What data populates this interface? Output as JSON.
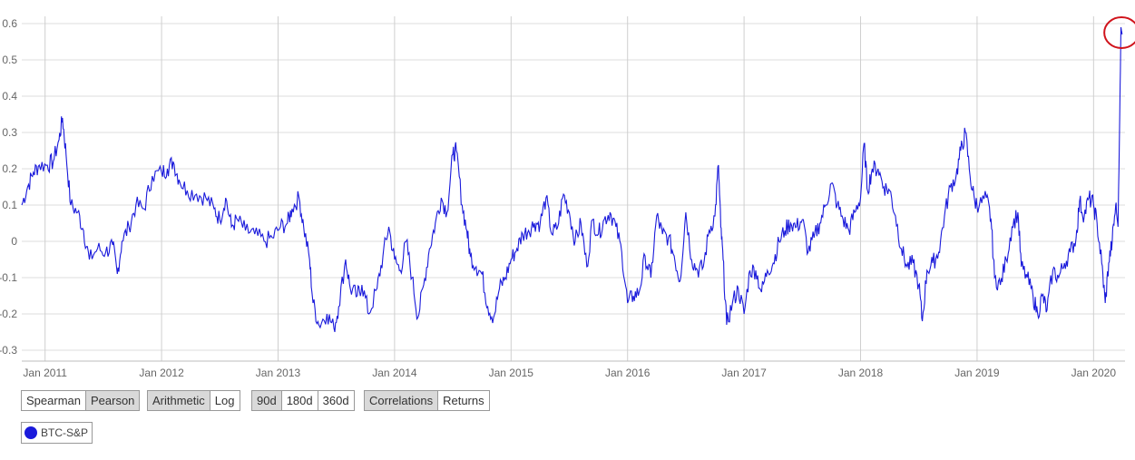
{
  "chart_data": {
    "type": "line",
    "x_ticks": [
      "Jan 2011",
      "Jan 2012",
      "Jan 2013",
      "Jan 2014",
      "Jan 2015",
      "Jan 2016",
      "Jan 2017",
      "Jan 2018",
      "Jan 2019",
      "Jan 2020"
    ],
    "y_ticks": [
      "0.6",
      "0.5",
      "0.4",
      "0.3",
      "0.2",
      "0.1",
      "0",
      "-0.1",
      "-0.2",
      "-0.3"
    ],
    "ylim": [
      -0.33,
      0.62
    ],
    "xlim": [
      2010.8,
      2020.27
    ],
    "grid": true,
    "series": [
      {
        "name": "BTC-S&P",
        "color": "#1a1adb",
        "points": [
          [
            2010.8,
            0.1
          ],
          [
            2010.85,
            0.15
          ],
          [
            2010.9,
            0.19
          ],
          [
            2010.95,
            0.21
          ],
          [
            2011.02,
            0.21
          ],
          [
            2011.07,
            0.22
          ],
          [
            2011.12,
            0.28
          ],
          [
            2011.15,
            0.34
          ],
          [
            2011.18,
            0.24
          ],
          [
            2011.22,
            0.1
          ],
          [
            2011.28,
            0.08
          ],
          [
            2011.33,
            0.03
          ],
          [
            2011.38,
            -0.05
          ],
          [
            2011.45,
            -0.02
          ],
          [
            2011.52,
            -0.03
          ],
          [
            2011.58,
            -0.01
          ],
          [
            2011.62,
            -0.09
          ],
          [
            2011.66,
            0.0
          ],
          [
            2011.72,
            0.04
          ],
          [
            2011.78,
            0.1
          ],
          [
            2011.85,
            0.09
          ],
          [
            2011.92,
            0.18
          ],
          [
            2012.0,
            0.19
          ],
          [
            2012.05,
            0.2
          ],
          [
            2012.1,
            0.22
          ],
          [
            2012.15,
            0.17
          ],
          [
            2012.22,
            0.14
          ],
          [
            2012.3,
            0.13
          ],
          [
            2012.38,
            0.12
          ],
          [
            2012.45,
            0.09
          ],
          [
            2012.5,
            0.06
          ],
          [
            2012.55,
            0.12
          ],
          [
            2012.6,
            0.04
          ],
          [
            2012.65,
            0.06
          ],
          [
            2012.72,
            0.03
          ],
          [
            2012.8,
            0.02
          ],
          [
            2012.88,
            0.0
          ],
          [
            2012.95,
            0.01
          ],
          [
            2013.02,
            0.04
          ],
          [
            2013.08,
            0.05
          ],
          [
            2013.12,
            0.09
          ],
          [
            2013.18,
            0.12
          ],
          [
            2013.22,
            0.04
          ],
          [
            2013.27,
            -0.05
          ],
          [
            2013.3,
            -0.17
          ],
          [
            2013.35,
            -0.23
          ],
          [
            2013.42,
            -0.2
          ],
          [
            2013.48,
            -0.24
          ],
          [
            2013.52,
            -0.18
          ],
          [
            2013.58,
            -0.05
          ],
          [
            2013.62,
            -0.13
          ],
          [
            2013.68,
            -0.15
          ],
          [
            2013.72,
            -0.12
          ],
          [
            2013.78,
            -0.2
          ],
          [
            2013.85,
            -0.13
          ],
          [
            2013.9,
            -0.04
          ],
          [
            2013.95,
            0.04
          ],
          [
            2014.0,
            -0.05
          ],
          [
            2014.05,
            -0.08
          ],
          [
            2014.1,
            0.0
          ],
          [
            2014.15,
            -0.1
          ],
          [
            2014.2,
            -0.21
          ],
          [
            2014.25,
            -0.12
          ],
          [
            2014.3,
            -0.02
          ],
          [
            2014.35,
            0.05
          ],
          [
            2014.4,
            0.12
          ],
          [
            2014.45,
            0.08
          ],
          [
            2014.5,
            0.24
          ],
          [
            2014.53,
            0.25
          ],
          [
            2014.58,
            0.1
          ],
          [
            2014.62,
            0.03
          ],
          [
            2014.65,
            -0.04
          ],
          [
            2014.7,
            -0.07
          ],
          [
            2014.75,
            -0.09
          ],
          [
            2014.8,
            -0.18
          ],
          [
            2014.85,
            -0.21
          ],
          [
            2014.9,
            -0.13
          ],
          [
            2014.95,
            -0.1
          ],
          [
            2015.0,
            -0.05
          ],
          [
            2015.05,
            -0.02
          ],
          [
            2015.1,
            0.02
          ],
          [
            2015.15,
            0.03
          ],
          [
            2015.2,
            0.05
          ],
          [
            2015.25,
            0.05
          ],
          [
            2015.3,
            0.12
          ],
          [
            2015.35,
            0.02
          ],
          [
            2015.4,
            0.04
          ],
          [
            2015.45,
            0.13
          ],
          [
            2015.5,
            0.08
          ],
          [
            2015.55,
            0.0
          ],
          [
            2015.6,
            0.05
          ],
          [
            2015.65,
            -0.07
          ],
          [
            2015.7,
            0.06
          ],
          [
            2015.75,
            0.02
          ],
          [
            2015.8,
            0.06
          ],
          [
            2015.85,
            0.08
          ],
          [
            2015.9,
            0.04
          ],
          [
            2015.95,
            -0.03
          ],
          [
            2016.0,
            -0.17
          ],
          [
            2016.05,
            -0.15
          ],
          [
            2016.1,
            -0.14
          ],
          [
            2016.15,
            -0.04
          ],
          [
            2016.2,
            -0.1
          ],
          [
            2016.25,
            0.07
          ],
          [
            2016.3,
            0.02
          ],
          [
            2016.35,
            0.01
          ],
          [
            2016.4,
            -0.04
          ],
          [
            2016.45,
            -0.11
          ],
          [
            2016.5,
            0.08
          ],
          [
            2016.55,
            -0.05
          ],
          [
            2016.6,
            -0.08
          ],
          [
            2016.65,
            -0.07
          ],
          [
            2016.7,
            0.03
          ],
          [
            2016.75,
            0.07
          ],
          [
            2016.78,
            0.21
          ],
          [
            2016.8,
            0.04
          ],
          [
            2016.82,
            -0.05
          ],
          [
            2016.85,
            -0.23
          ],
          [
            2016.9,
            -0.17
          ],
          [
            2016.95,
            -0.13
          ],
          [
            2017.0,
            -0.2
          ],
          [
            2017.05,
            -0.08
          ],
          [
            2017.1,
            -0.08
          ],
          [
            2017.15,
            -0.14
          ],
          [
            2017.2,
            -0.08
          ],
          [
            2017.25,
            -0.06
          ],
          [
            2017.3,
            0.0
          ],
          [
            2017.35,
            0.03
          ],
          [
            2017.4,
            0.05
          ],
          [
            2017.45,
            0.04
          ],
          [
            2017.5,
            0.06
          ],
          [
            2017.55,
            -0.03
          ],
          [
            2017.6,
            0.01
          ],
          [
            2017.65,
            0.05
          ],
          [
            2017.7,
            0.1
          ],
          [
            2017.75,
            0.16
          ],
          [
            2017.8,
            0.1
          ],
          [
            2017.85,
            0.06
          ],
          [
            2017.9,
            0.03
          ],
          [
            2017.95,
            0.08
          ],
          [
            2018.0,
            0.12
          ],
          [
            2018.03,
            0.27
          ],
          [
            2018.06,
            0.14
          ],
          [
            2018.1,
            0.2
          ],
          [
            2018.15,
            0.2
          ],
          [
            2018.2,
            0.15
          ],
          [
            2018.25,
            0.14
          ],
          [
            2018.3,
            0.07
          ],
          [
            2018.35,
            -0.02
          ],
          [
            2018.4,
            -0.07
          ],
          [
            2018.45,
            -0.06
          ],
          [
            2018.5,
            -0.12
          ],
          [
            2018.53,
            -0.22
          ],
          [
            2018.57,
            -0.08
          ],
          [
            2018.62,
            -0.06
          ],
          [
            2018.67,
            -0.03
          ],
          [
            2018.72,
            0.07
          ],
          [
            2018.77,
            0.15
          ],
          [
            2018.82,
            0.18
          ],
          [
            2018.86,
            0.25
          ],
          [
            2018.9,
            0.3
          ],
          [
            2018.94,
            0.18
          ],
          [
            2018.98,
            0.11
          ],
          [
            2019.02,
            0.1
          ],
          [
            2019.08,
            0.12
          ],
          [
            2019.12,
            0.06
          ],
          [
            2019.15,
            -0.1
          ],
          [
            2019.2,
            -0.12
          ],
          [
            2019.25,
            -0.05
          ],
          [
            2019.3,
            0.04
          ],
          [
            2019.35,
            0.08
          ],
          [
            2019.38,
            -0.07
          ],
          [
            2019.43,
            -0.1
          ],
          [
            2019.48,
            -0.15
          ],
          [
            2019.52,
            -0.2
          ],
          [
            2019.56,
            -0.15
          ],
          [
            2019.6,
            -0.19
          ],
          [
            2019.65,
            -0.08
          ],
          [
            2019.7,
            -0.1
          ],
          [
            2019.75,
            -0.06
          ],
          [
            2019.8,
            -0.03
          ],
          [
            2019.85,
            0.01
          ],
          [
            2019.88,
            0.11
          ],
          [
            2019.92,
            0.07
          ],
          [
            2019.96,
            0.12
          ],
          [
            2020.0,
            0.1
          ],
          [
            2020.03,
            0.05
          ],
          [
            2020.07,
            -0.06
          ],
          [
            2020.1,
            -0.17
          ],
          [
            2020.13,
            -0.06
          ],
          [
            2020.16,
            0.0
          ],
          [
            2020.19,
            0.1
          ],
          [
            2020.21,
            0.04
          ],
          [
            2020.225,
            0.35
          ],
          [
            2020.235,
            0.59
          ],
          [
            2020.245,
            0.57
          ]
        ]
      }
    ]
  },
  "controls": {
    "method": {
      "options": [
        "Spearman",
        "Pearson"
      ],
      "active": "Pearson"
    },
    "scale": {
      "options": [
        "Arithmetic",
        "Log"
      ],
      "active": "Arithmetic"
    },
    "window": {
      "options": [
        "90d",
        "180d",
        "360d"
      ],
      "active": "90d"
    },
    "view": {
      "options": [
        "Correlations",
        "Returns"
      ],
      "active": "Correlations"
    }
  },
  "legend": {
    "label": "BTC-S&P",
    "color": "#1a1adb"
  },
  "annotation": {
    "shape": "circle",
    "color": "#d0141c",
    "x": 2020.24,
    "y": 0.575
  }
}
